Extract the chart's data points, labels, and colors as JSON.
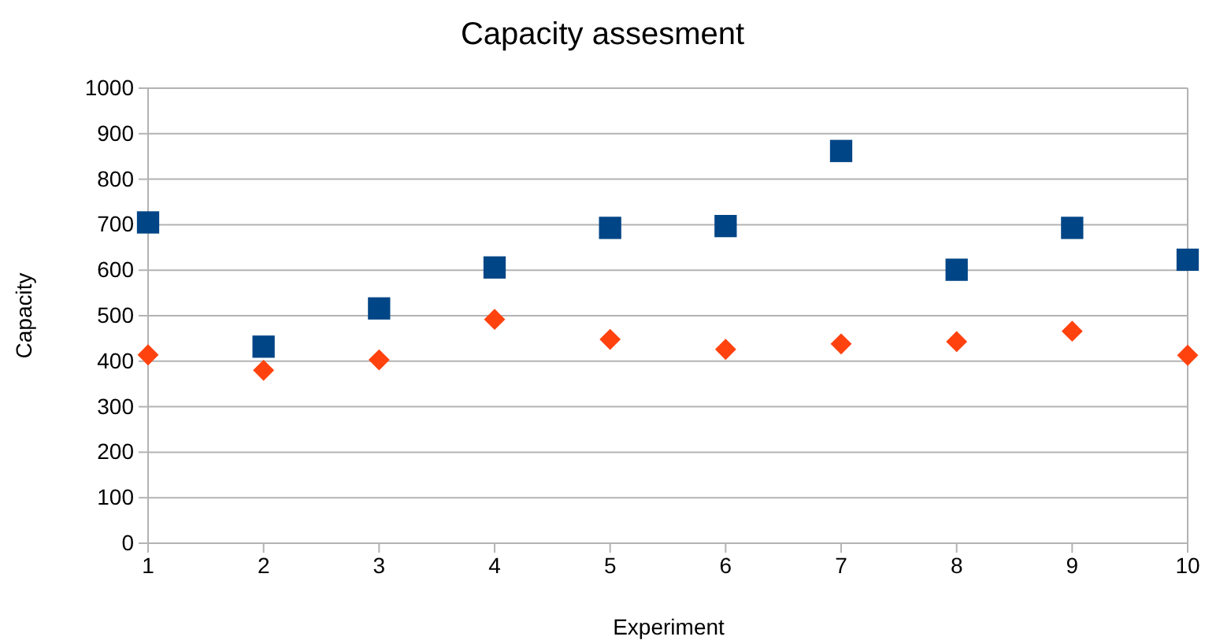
{
  "chart_data": {
    "type": "scatter",
    "title": "Capacity assesment",
    "xlabel": "Experiment",
    "ylabel": "Capacity",
    "x": [
      1,
      2,
      3,
      4,
      5,
      6,
      7,
      8,
      9,
      10
    ],
    "series": [
      {
        "color": "#004586",
        "marker": "square",
        "values": [
          705,
          432,
          516,
          606,
          693,
          697,
          862,
          601,
          693,
          623
        ]
      },
      {
        "color": "#ff420e",
        "marker": "diamond",
        "values": [
          414,
          380,
          403,
          492,
          448,
          426,
          438,
          443,
          466,
          413
        ]
      }
    ],
    "xlim": [
      1,
      10
    ],
    "xticks": [
      1,
      2,
      3,
      4,
      5,
      6,
      7,
      8,
      9,
      10
    ],
    "ylim": [
      0,
      1000
    ],
    "yticks": [
      0,
      100,
      200,
      300,
      400,
      500,
      600,
      700,
      800,
      900,
      1000
    ],
    "grid": "y"
  }
}
